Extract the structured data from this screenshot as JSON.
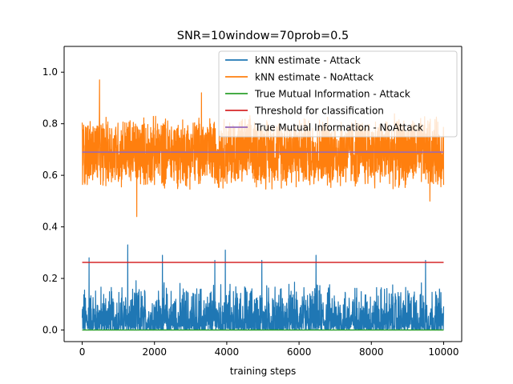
{
  "chart_data": {
    "type": "line",
    "title": "SNR=10window=70prob=0.5",
    "xlabel": "training steps",
    "ylabel": "",
    "xlim": [
      -500,
      10500
    ],
    "ylim": [
      -0.045,
      1.1
    ],
    "xticks": [
      0,
      2000,
      4000,
      6000,
      8000,
      10000
    ],
    "xtick_labels": [
      "0",
      "2000",
      "4000",
      "6000",
      "8000",
      "10000"
    ],
    "yticks": [
      0.0,
      0.2,
      0.4,
      0.6,
      0.8,
      1.0
    ],
    "ytick_labels": [
      "0.0",
      "0.2",
      "0.4",
      "0.6",
      "0.8",
      "1.0"
    ],
    "grid": false,
    "legend_position": "top-right",
    "x_range": [
      0,
      10000
    ],
    "series": [
      {
        "name": "kNN estimate - Attack",
        "color": "#1f77b4",
        "kind": "noisy",
        "x_range": [
          0,
          10000
        ],
        "baseline": 0.0,
        "typical_max": 0.2,
        "max": 0.33,
        "spikes": [
          {
            "x": 190,
            "y": 0.28
          },
          {
            "x": 1260,
            "y": 0.33
          },
          {
            "x": 2220,
            "y": 0.29
          },
          {
            "x": 3670,
            "y": 0.27
          },
          {
            "x": 3960,
            "y": 0.31
          },
          {
            "x": 4970,
            "y": 0.27
          },
          {
            "x": 6470,
            "y": 0.29
          },
          {
            "x": 9500,
            "y": 0.27
          }
        ]
      },
      {
        "name": "kNN estimate - NoAttack",
        "color": "#ff7f0e",
        "kind": "noisy",
        "x_range": [
          0,
          10000
        ],
        "center": 0.69,
        "typical_min": 0.56,
        "typical_max": 0.86,
        "min": 0.44,
        "max": 0.97,
        "spikes": [
          {
            "x": 480,
            "y": 0.97
          },
          {
            "x": 1510,
            "y": 0.44
          },
          {
            "x": 3300,
            "y": 0.92
          },
          {
            "x": 9620,
            "y": 0.5
          }
        ]
      },
      {
        "name": "True Mutual Information - Attack",
        "color": "#2ca02c",
        "kind": "constant",
        "x": [
          0,
          10000
        ],
        "y": [
          0.0,
          0.0
        ]
      },
      {
        "name": "Threshold for classification",
        "color": "#d62728",
        "kind": "constant",
        "x": [
          0,
          10000
        ],
        "y": [
          0.262,
          0.262
        ]
      },
      {
        "name": "True Mutual Information - NoAttack",
        "color": "#9467bd",
        "kind": "constant",
        "x": [
          0,
          10000
        ],
        "y": [
          0.69,
          0.69
        ]
      }
    ]
  }
}
